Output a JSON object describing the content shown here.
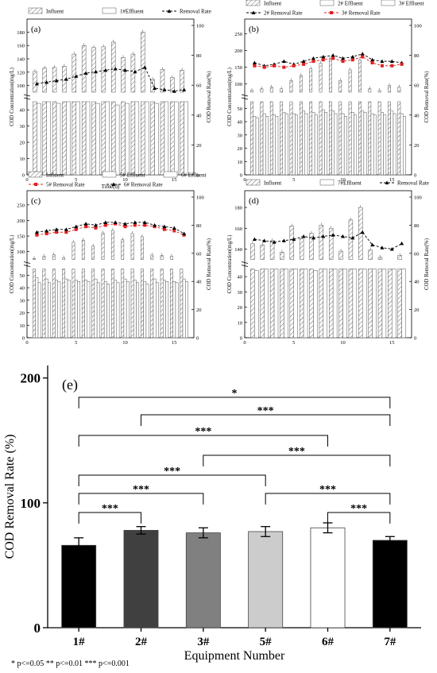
{
  "chart_data": [
    {
      "panel": "(a)",
      "type": "bar",
      "x": [
        1,
        2,
        3,
        4,
        5,
        6,
        7,
        8,
        9,
        10,
        11,
        12,
        13,
        14,
        15,
        16
      ],
      "series": [
        {
          "name": "Influent",
          "values": [
            121,
            126,
            127,
            129,
            147,
            160,
            157,
            158,
            165,
            142,
            147,
            180,
            109,
            124,
            112,
            123
          ]
        },
        {
          "name": "1#Effluent",
          "values": [
            44,
            45,
            44,
            46,
            45,
            46,
            44,
            45,
            43,
            44,
            46,
            45,
            44,
            46,
            47,
            48
          ]
        },
        {
          "name": "Removal Rate",
          "values": [
            61,
            62,
            63,
            64,
            66,
            68,
            69,
            70,
            71,
            70,
            69,
            72,
            58,
            57,
            56,
            57
          ]
        }
      ],
      "ylabel_left": "COD Concentration(mg/L)",
      "ylabel_right": "COD Removal Rate(%)",
      "xlabel": "Time(d)",
      "left_ticks_upper": [
        100,
        120,
        140,
        160,
        180
      ],
      "left_ticks_lower": [
        0,
        10,
        20,
        30,
        40
      ],
      "right_ticks": [
        0,
        20,
        40,
        60,
        80,
        100
      ],
      "x_ticks": [
        0,
        5,
        10,
        15
      ],
      "hatch": true
    },
    {
      "panel": "(b)",
      "type": "bar",
      "x": [
        1,
        2,
        3,
        4,
        5,
        6,
        7,
        8,
        9,
        10,
        11,
        12,
        13,
        14,
        15,
        16
      ],
      "series": [
        {
          "name": "Influent",
          "values": [
            80,
            85,
            90,
            85,
            110,
            125,
            145,
            162,
            175,
            110,
            142,
            172,
            85,
            80,
            95,
            90
          ]
        },
        {
          "name": "2# Effluent",
          "values": [
            44,
            46,
            45,
            47,
            46,
            48,
            47,
            49,
            48,
            46,
            47,
            48,
            46,
            47,
            48,
            46
          ]
        },
        {
          "name": "3# Effluent",
          "values": [
            43,
            44,
            44,
            46,
            45,
            46,
            45,
            47,
            46,
            44,
            45,
            47,
            45,
            45,
            46,
            44
          ]
        },
        {
          "name": "2# Removal Rate",
          "values": [
            75,
            73,
            74,
            76,
            74,
            76,
            78,
            79,
            80,
            78,
            79,
            81,
            77,
            76,
            76,
            75
          ]
        },
        {
          "name": "3# Removal Rate",
          "values": [
            73,
            72,
            73,
            72,
            73,
            74,
            76,
            77,
            78,
            76,
            77,
            79,
            75,
            73,
            73,
            74
          ]
        }
      ],
      "ylabel_left": "COD Concentration(mg/L)",
      "ylabel_right": "COD Removal Rate(%)",
      "left_ticks_upper": [
        100,
        150,
        200,
        250
      ],
      "left_ticks_lower": [
        0,
        10,
        20,
        30,
        40,
        50
      ],
      "right_ticks": [
        0,
        20,
        40,
        60,
        80,
        100
      ],
      "x_ticks": [
        0,
        5,
        10,
        15
      ]
    },
    {
      "panel": "(c)",
      "type": "bar",
      "x": [
        1,
        2,
        3,
        4,
        5,
        6,
        7,
        8,
        9,
        10,
        11,
        12,
        13,
        14,
        15,
        16
      ],
      "series": [
        {
          "name": "Influent",
          "values": [
            78,
            85,
            90,
            80,
            130,
            137,
            118,
            160,
            168,
            138,
            158,
            148,
            89,
            88,
            85,
            75
          ]
        },
        {
          "name": "5# Effluent",
          "values": [
            48,
            47,
            46,
            47,
            46,
            46,
            47,
            45,
            46,
            47,
            46,
            45,
            47,
            46,
            45,
            47
          ]
        },
        {
          "name": "6# Effluent",
          "values": [
            44,
            44,
            45,
            46,
            45,
            45,
            44,
            43,
            44,
            45,
            44,
            43,
            44,
            45,
            44,
            45
          ]
        },
        {
          "name": "5# Removal Rate",
          "values": [
            73,
            74,
            75,
            75,
            77,
            79,
            78,
            80,
            81,
            79,
            80,
            80,
            79,
            77,
            76,
            73
          ]
        },
        {
          "name": "6# Removal Rate",
          "values": [
            75,
            76,
            77,
            77,
            79,
            81,
            80,
            82,
            82,
            81,
            82,
            82,
            80,
            79,
            78,
            74
          ]
        }
      ],
      "ylabel_left": "COD Concentration(mg/L)",
      "ylabel_right": "COD Removal Rate(%)",
      "left_ticks_upper": [
        100,
        150,
        200,
        250
      ],
      "left_ticks_lower": [
        0,
        10,
        20,
        30,
        40,
        50
      ],
      "right_ticks": [
        0,
        20,
        40,
        60,
        80,
        100
      ],
      "x_ticks": [
        0,
        5,
        10,
        15
      ]
    },
    {
      "panel": "(d)",
      "type": "bar",
      "x": [
        1,
        2,
        3,
        4,
        5,
        6,
        7,
        8,
        9,
        10,
        11,
        12,
        13,
        14,
        15,
        16
      ],
      "series": [
        {
          "name": "Influent",
          "values": [
            145,
            144,
            148,
            137,
            162,
            150,
            155,
            163,
            160,
            138,
            168,
            180,
            139,
            132,
            126,
            134
          ]
        },
        {
          "name": "7#Effluent",
          "values": [
            44,
            45,
            46,
            45,
            46,
            45,
            44,
            46,
            45,
            46,
            47,
            52,
            47,
            49,
            47,
            46
          ]
        },
        {
          "name": "Removal Rate",
          "values": [
            70,
            69,
            68,
            69,
            70,
            72,
            71,
            72,
            73,
            72,
            71,
            75,
            66,
            64,
            63,
            67
          ]
        }
      ],
      "ylabel_left": "COD Concentration(mg/L)",
      "ylabel_right": "COD Removal Rate(%)",
      "left_ticks_upper": [
        140,
        160,
        180
      ],
      "left_ticks_lower": [
        0,
        10,
        20,
        30,
        40
      ],
      "right_ticks": [
        0,
        20,
        40,
        60,
        80,
        100
      ],
      "x_ticks": [
        0,
        5,
        10,
        15
      ]
    },
    {
      "panel": "(e)",
      "type": "bar",
      "categories": [
        "1#",
        "2#",
        "3#",
        "5#",
        "6#",
        "7#"
      ],
      "values": [
        66,
        78,
        76,
        77,
        80,
        70
      ],
      "errors": [
        6,
        3,
        4,
        4,
        4,
        3
      ],
      "colors": [
        "#000000",
        "#404040",
        "#808080",
        "#cccccc",
        "#ffffff",
        "#000000"
      ],
      "ylabel": "COD Removal Rate (%)",
      "xlabel": "Equipment Number",
      "ylim": [
        0,
        200
      ],
      "y_ticks": [
        0,
        100,
        200
      ],
      "significance": [
        {
          "a": "1#",
          "b": "7#",
          "label": "*"
        },
        {
          "a": "2#",
          "b": "7#",
          "label": "***"
        },
        {
          "a": "1#",
          "b": "6#",
          "label": "***"
        },
        {
          "a": "3#",
          "b": "7#",
          "label": "***"
        },
        {
          "a": "1#",
          "b": "5#",
          "label": "***"
        },
        {
          "a": "1#",
          "b": "3#",
          "label": "***"
        },
        {
          "a": "5#",
          "b": "7#",
          "label": "***"
        },
        {
          "a": "1#",
          "b": "2#",
          "label": "***"
        },
        {
          "a": "6#",
          "b": "7#",
          "label": "***"
        }
      ],
      "footnote": "* p<=0.05   ** p<=0.01   *** p<=0.001"
    }
  ],
  "colors": {
    "black": "#000000",
    "red_series": "#e02020",
    "gray_fill": "#ffffff"
  }
}
